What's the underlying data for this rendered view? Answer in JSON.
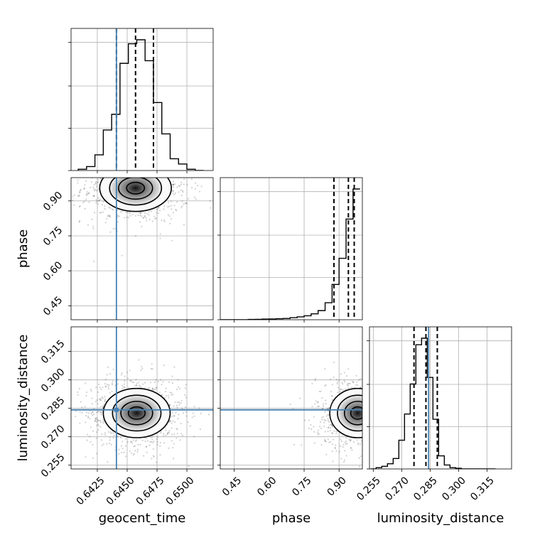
{
  "chart_data": {
    "type": "corner",
    "parameters": [
      "geocent_time",
      "phase",
      "luminosity_distance"
    ],
    "axis_labels": {
      "geocent_time": "geocent_time",
      "phase": "phase",
      "luminosity_distance": "luminosity_distance"
    },
    "ranges": {
      "geocent_time": [
        0.6403,
        0.6522
      ],
      "phase": [
        0.39,
        1.0
      ],
      "luminosity_distance": [
        0.253,
        0.328
      ]
    },
    "ticks": {
      "geocent_time": [
        "0.6425",
        "0.6450",
        "0.6475",
        "0.6500"
      ],
      "phase": [
        "0.45",
        "0.60",
        "0.75",
        "0.90"
      ],
      "luminosity_distance": [
        "0.255",
        "0.270",
        "0.285",
        "0.300",
        "0.315"
      ]
    },
    "truths": {
      "geocent_time": 0.6441,
      "phase": null,
      "luminosity_distance": 0.2842
    },
    "quantiles": {
      "geocent_time": [
        0.6441,
        0.6457,
        0.6472
      ],
      "phase": [
        0.878,
        0.94,
        0.965
      ],
      "luminosity_distance": [
        0.2765,
        0.2828,
        0.2888
      ]
    },
    "histograms": {
      "geocent_time": {
        "edges": [
          0.6409,
          0.6416,
          0.6423,
          0.643,
          0.6437,
          0.6444,
          0.6451,
          0.6458,
          0.6465,
          0.6472,
          0.6479,
          0.6486,
          0.6493,
          0.65,
          0.6507,
          0.6514
        ],
        "counts": [
          0.01,
          0.03,
          0.12,
          0.31,
          0.43,
          0.82,
          0.97,
          1.0,
          0.84,
          0.52,
          0.28,
          0.09,
          0.05,
          0.01,
          0.0
        ]
      },
      "phase": {
        "edges": [
          0.39,
          0.42,
          0.45,
          0.48,
          0.51,
          0.54,
          0.57,
          0.6,
          0.63,
          0.66,
          0.69,
          0.72,
          0.75,
          0.78,
          0.81,
          0.84,
          0.87,
          0.9,
          0.93,
          0.96,
          0.99
        ],
        "counts": [
          0.0,
          0.0,
          0.0,
          0.0,
          0.002,
          0.003,
          0.005,
          0.006,
          0.008,
          0.01,
          0.016,
          0.022,
          0.03,
          0.045,
          0.07,
          0.13,
          0.27,
          0.47,
          0.77,
          1.0
        ]
      },
      "luminosity_distance": {
        "edges": [
          0.2535,
          0.2565,
          0.2595,
          0.2625,
          0.2655,
          0.2685,
          0.2715,
          0.2745,
          0.2775,
          0.2805,
          0.2835,
          0.2865,
          0.2895,
          0.2925,
          0.2955,
          0.2985,
          0.3015,
          0.3045,
          0.3075,
          0.3105,
          0.3135,
          0.3165,
          0.3195
        ],
        "counts": [
          0.0,
          0.01,
          0.02,
          0.04,
          0.08,
          0.22,
          0.42,
          0.65,
          0.95,
          1.0,
          0.7,
          0.38,
          0.1,
          0.03,
          0.01,
          0.005,
          0.0,
          0.0,
          0.0,
          0.0,
          0.0,
          0.0
        ]
      }
    },
    "densities": [
      {
        "x": "geocent_time",
        "y": "phase",
        "center": [
          0.6457,
          0.955
        ],
        "sigma": [
          0.0015,
          0.05
        ]
      },
      {
        "x": "geocent_time",
        "y": "luminosity_distance",
        "center": [
          0.6458,
          0.2825
        ],
        "sigma": [
          0.0014,
          0.0065
        ]
      },
      {
        "x": "phase",
        "y": "luminosity_distance",
        "center": [
          0.98,
          0.2825
        ],
        "sigma": [
          0.06,
          0.0065
        ]
      }
    ],
    "colors": {
      "hist": "#000000",
      "quantile": "#000000",
      "truth": "#4682b4",
      "grid": "#b0b0b0",
      "contour": "#000000"
    },
    "grid": true
  }
}
